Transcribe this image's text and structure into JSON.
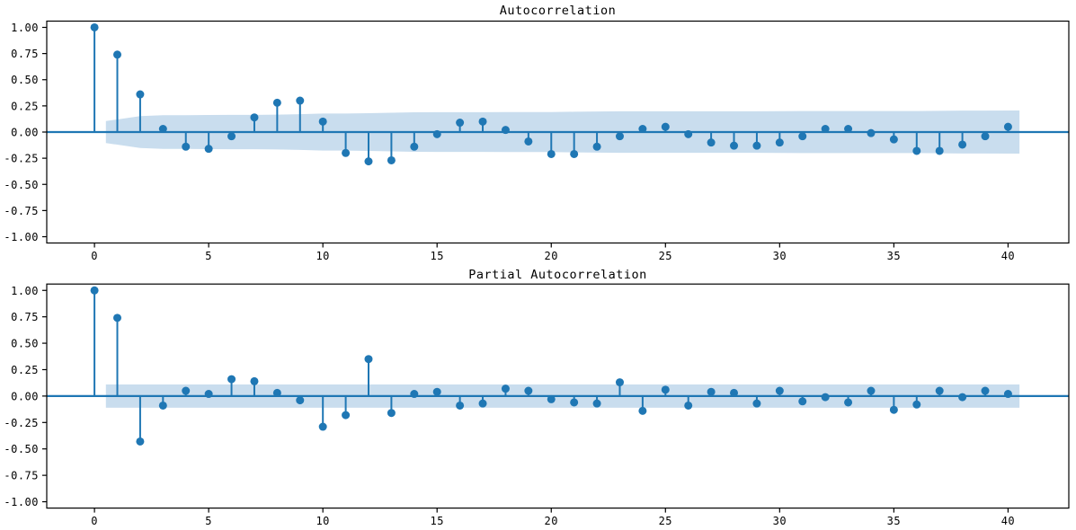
{
  "figure": {
    "background_color": "#ffffff",
    "accent_color": "#1f77b4",
    "band_color": "#c9ddee",
    "axis_color": "#000000",
    "text_color": "#000000"
  },
  "chart_data": [
    {
      "type": "stem",
      "title": "Autocorrelation",
      "xlabel": "",
      "ylabel": "",
      "grid": false,
      "legend": null,
      "xlim": [
        -2.09,
        42.66
      ],
      "ylim": [
        -1.06,
        1.06
      ],
      "x_ticks": [
        0,
        5,
        10,
        15,
        20,
        25,
        30,
        35,
        40
      ],
      "x_tick_labels": [
        "0",
        "5",
        "10",
        "15",
        "20",
        "25",
        "30",
        "35",
        "40"
      ],
      "y_ticks": [
        1.0,
        0.75,
        0.5,
        0.25,
        0.0,
        -0.25,
        -0.5,
        -0.75,
        -1.0
      ],
      "y_tick_labels": [
        "1.00",
        "0.75",
        "0.50",
        "0.25",
        "0.00",
        "-0.25",
        "-0.50",
        "-0.75",
        "-1.00"
      ],
      "lags": [
        0,
        1,
        2,
        3,
        4,
        5,
        6,
        7,
        8,
        9,
        10,
        11,
        12,
        13,
        14,
        15,
        16,
        17,
        18,
        19,
        20,
        21,
        22,
        23,
        24,
        25,
        26,
        27,
        28,
        29,
        30,
        31,
        32,
        33,
        34,
        35,
        36,
        37,
        38,
        39,
        40
      ],
      "values": [
        1.0,
        0.74,
        0.36,
        0.03,
        -0.14,
        -0.16,
        -0.04,
        0.14,
        0.28,
        0.3,
        0.1,
        -0.2,
        -0.28,
        -0.27,
        -0.14,
        -0.02,
        0.09,
        0.1,
        0.02,
        -0.09,
        -0.21,
        -0.21,
        -0.14,
        -0.04,
        0.03,
        0.05,
        -0.02,
        -0.1,
        -0.13,
        -0.13,
        -0.1,
        -0.04,
        0.03,
        0.03,
        -0.01,
        -0.07,
        -0.18,
        -0.18,
        -0.12,
        -0.04,
        0.05
      ],
      "conf_band_x_start": 0.5,
      "conf_band_x_end": 40.5,
      "conf_halfwidths": [
        0.105,
        0.152,
        0.161,
        0.161,
        0.163,
        0.164,
        0.164,
        0.166,
        0.171,
        0.177,
        0.177,
        0.18,
        0.184,
        0.189,
        0.19,
        0.19,
        0.19,
        0.191,
        0.191,
        0.191,
        0.194,
        0.196,
        0.198,
        0.198,
        0.198,
        0.198,
        0.198,
        0.198,
        0.199,
        0.2,
        0.201,
        0.201,
        0.201,
        0.201,
        0.201,
        0.201,
        0.203,
        0.205,
        0.205,
        0.206
      ]
    },
    {
      "type": "stem",
      "title": "Partial Autocorrelation",
      "xlabel": "",
      "ylabel": "",
      "grid": false,
      "legend": null,
      "xlim": [
        -2.09,
        42.66
      ],
      "ylim": [
        -1.06,
        1.06
      ],
      "x_ticks": [
        0,
        5,
        10,
        15,
        20,
        25,
        30,
        35,
        40
      ],
      "x_tick_labels": [
        "0",
        "5",
        "10",
        "15",
        "20",
        "25",
        "30",
        "35",
        "40"
      ],
      "y_ticks": [
        1.0,
        0.75,
        0.5,
        0.25,
        0.0,
        -0.25,
        -0.5,
        -0.75,
        -1.0
      ],
      "y_tick_labels": [
        "1.00",
        "0.75",
        "0.50",
        "0.25",
        "0.00",
        "-0.25",
        "-0.50",
        "-0.75",
        "-1.00"
      ],
      "lags": [
        0,
        1,
        2,
        3,
        4,
        5,
        6,
        7,
        8,
        9,
        10,
        11,
        12,
        13,
        14,
        15,
        16,
        17,
        18,
        19,
        20,
        21,
        22,
        23,
        24,
        25,
        26,
        27,
        28,
        29,
        30,
        31,
        32,
        33,
        34,
        35,
        36,
        37,
        38,
        39,
        40
      ],
      "values": [
        1.0,
        0.74,
        -0.43,
        -0.09,
        0.05,
        0.02,
        0.16,
        0.14,
        0.03,
        -0.04,
        -0.29,
        -0.18,
        0.35,
        -0.16,
        0.02,
        0.04,
        -0.09,
        -0.07,
        0.07,
        0.05,
        -0.03,
        -0.06,
        -0.07,
        0.13,
        -0.14,
        0.06,
        -0.09,
        0.04,
        0.03,
        -0.07,
        0.05,
        -0.05,
        -0.01,
        -0.06,
        0.05,
        -0.13,
        -0.08,
        0.05,
        -0.01,
        0.05,
        0.02
      ],
      "conf_band_x_start": 0.5,
      "conf_band_x_end": 40.5,
      "conf_halfwidths": 0.11
    }
  ]
}
